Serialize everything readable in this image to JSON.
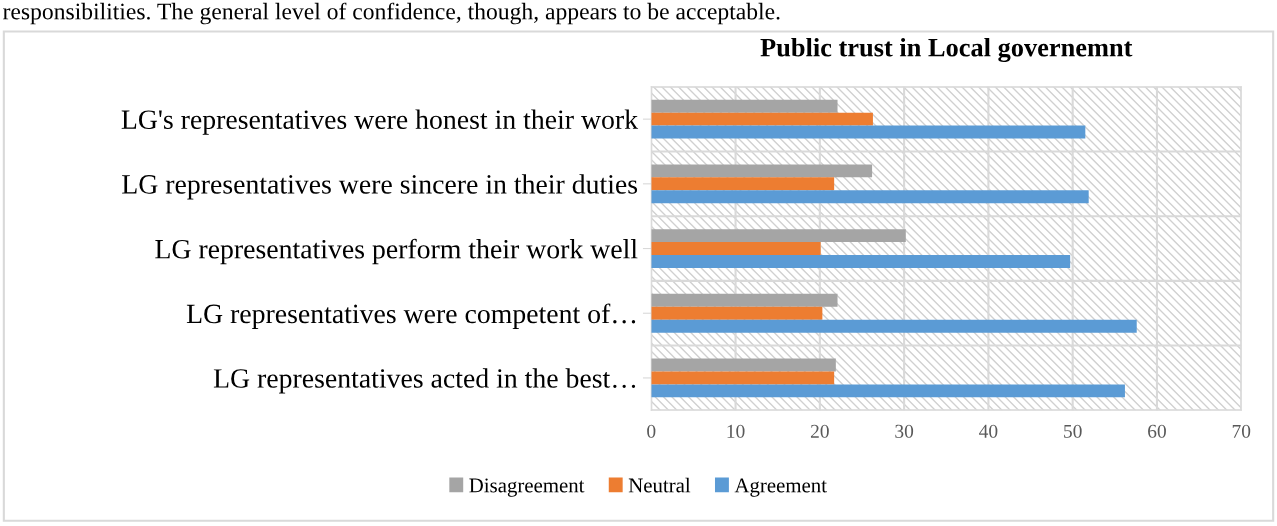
{
  "chart_data": {
    "type": "bar",
    "orientation": "horizontal",
    "title": "Public trust in Local governemnt",
    "categories": [
      "LG's representatives were honest in their work",
      "LG representatives were sincere in their duties",
      "LG representatives perform their work well",
      "LG representatives were competent of…",
      "LG representatives acted in the best…"
    ],
    "series": [
      {
        "name": "Disagreement",
        "color": "#a5a5a5",
        "values": [
          22.1,
          26.2,
          30.2,
          22.1,
          21.9
        ]
      },
      {
        "name": "Neutral",
        "color": "#ed7d31",
        "values": [
          26.3,
          21.7,
          20.1,
          20.3,
          21.7
        ]
      },
      {
        "name": "Agreement",
        "color": "#5b9bd5",
        "values": [
          51.5,
          51.9,
          49.7,
          57.6,
          56.2
        ]
      }
    ],
    "xlim": [
      0,
      70
    ],
    "xticks": [
      0,
      10,
      20,
      30,
      40,
      50,
      60,
      70
    ],
    "grid": true,
    "legend": "bottom",
    "annotations": [
      "responsibilities. The general level of confidence, though, appears to be acceptable."
    ]
  }
}
